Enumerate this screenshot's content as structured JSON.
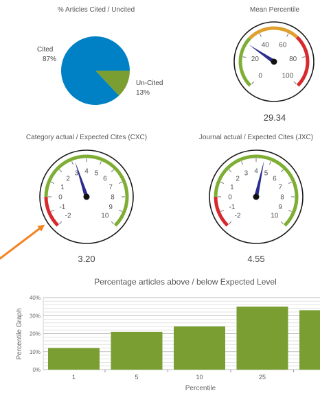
{
  "pie": {
    "title": "% Articles Cited / Uncited",
    "slices": [
      {
        "label": "Cited",
        "percent_label": "87%",
        "value": 87,
        "color": "#0081c6"
      },
      {
        "label": "Un-Cited",
        "percent_label": "13%",
        "value": 13,
        "color": "#7a9e32"
      }
    ]
  },
  "mean_percentile": {
    "title": "Mean Percentile",
    "value": 29.34,
    "value_label": "29.34",
    "min": 0,
    "max": 100,
    "ticks": [
      "0",
      "20",
      "40",
      "60",
      "80",
      "100"
    ],
    "bands": [
      {
        "from": 0,
        "to": 33,
        "color": "#7fae35"
      },
      {
        "from": 33,
        "to": 66,
        "color": "#e0a030"
      },
      {
        "from": 66,
        "to": 100,
        "color": "#d8292f"
      }
    ]
  },
  "cxc": {
    "title": "Category actual / Expected Cites (CXC)",
    "value": 3.2,
    "value_label": "3.20",
    "min": -2,
    "max": 10,
    "ticks": [
      "-2",
      "-1",
      "0",
      "1",
      "2",
      "3",
      "4",
      "5",
      "6",
      "7",
      "8",
      "9",
      "10"
    ],
    "bands": [
      {
        "from": -2,
        "to": 0,
        "color": "#d8292f"
      },
      {
        "from": 0,
        "to": 10,
        "color": "#7fae35"
      }
    ]
  },
  "jxc": {
    "title": "Journal actual / Expected Cites (JXC)",
    "value": 4.55,
    "value_label": "4.55",
    "min": -2,
    "max": 10,
    "ticks": [
      "-2",
      "-1",
      "0",
      "1",
      "2",
      "3",
      "4",
      "5",
      "6",
      "7",
      "8",
      "9",
      "10"
    ],
    "bands": [
      {
        "from": -2,
        "to": 0,
        "color": "#d8292f"
      },
      {
        "from": 0,
        "to": 10,
        "color": "#7fae35"
      }
    ]
  },
  "chart_data": [
    {
      "type": "pie",
      "title": "% Articles Cited / Uncited",
      "categories": [
        "Cited",
        "Un-Cited"
      ],
      "values": [
        87,
        13
      ]
    },
    {
      "type": "gauge",
      "title": "Mean Percentile",
      "value": 29.34,
      "range": [
        0,
        100
      ]
    },
    {
      "type": "gauge",
      "title": "Category actual / Expected Cites (CXC)",
      "value": 3.2,
      "range": [
        -2,
        10
      ]
    },
    {
      "type": "gauge",
      "title": "Journal actual / Expected Cites (JXC)",
      "value": 4.55,
      "range": [
        -2,
        10
      ]
    },
    {
      "type": "bar",
      "title": "Percentage articles above / below Expected Level",
      "xlabel": "Percentile",
      "ylabel": "Percentile Graph",
      "categories": [
        "1",
        "5",
        "10",
        "25",
        ""
      ],
      "values": [
        12,
        21,
        24,
        35,
        33
      ],
      "ylim": [
        0,
        40
      ],
      "yticks": [
        "0%",
        "10%",
        "20%",
        "30%",
        "40%"
      ],
      "color": "#7a9e32",
      "grid": true
    }
  ],
  "annotation": {
    "arrow_color": "#f58220"
  }
}
